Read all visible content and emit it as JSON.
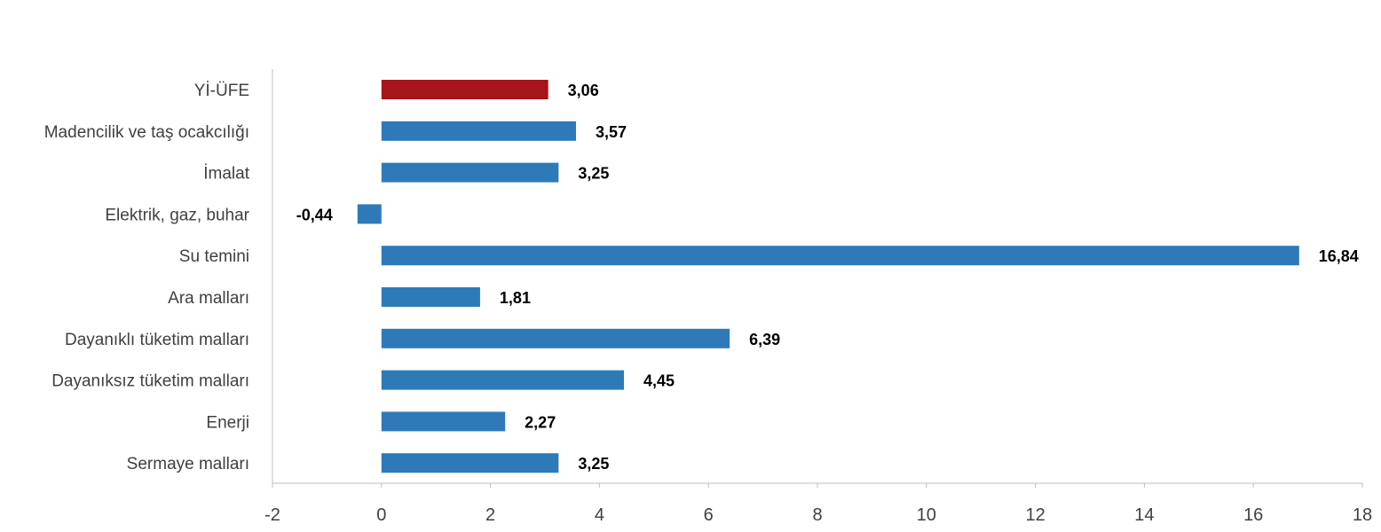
{
  "chart_data": {
    "type": "bar",
    "orientation": "horizontal",
    "categories": [
      "Yİ-ÜFE",
      "Madencilik ve taş ocakcılığı",
      "İmalat",
      "Elektrik, gaz, buhar",
      "Su temini",
      "Ara malları",
      "Dayanıklı tüketim malları",
      "Dayanıksız tüketim malları",
      "Enerji",
      "Sermaye malları"
    ],
    "values": [
      3.06,
      3.57,
      3.25,
      -0.44,
      16.84,
      1.81,
      6.39,
      4.45,
      2.27,
      3.25
    ],
    "value_labels": [
      "3,06",
      "3,57",
      "3,25",
      "-0,44",
      "16,84",
      "1,81",
      "6,39",
      "4,45",
      "2,27",
      "3,25"
    ],
    "colors": [
      "#a6141c",
      "#2e7ab8",
      "#2e7ab8",
      "#2e7ab8",
      "#2e7ab8",
      "#2e7ab8",
      "#2e7ab8",
      "#2e7ab8",
      "#2e7ab8",
      "#2e7ab8"
    ],
    "xlim": [
      -2,
      18
    ],
    "xticks": [
      -2,
      0,
      2,
      4,
      6,
      8,
      10,
      12,
      14,
      16,
      18
    ],
    "xtick_labels": [
      "-2",
      "0",
      "2",
      "4",
      "6",
      "8",
      "10",
      "12",
      "14",
      "16",
      "18"
    ],
    "title": "",
    "xlabel": "",
    "ylabel": "",
    "grid": false,
    "legend": "none"
  }
}
